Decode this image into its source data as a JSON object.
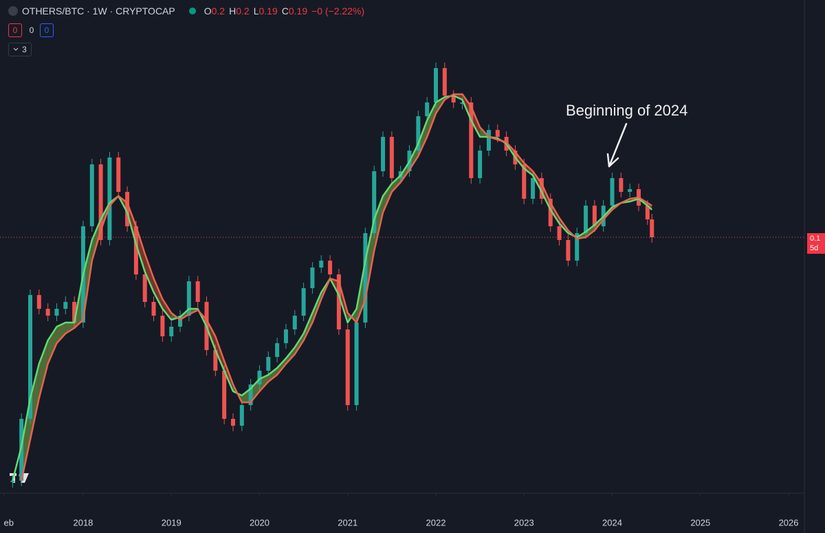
{
  "ui": {
    "symbol": "OTHERS/BTC · 1W · CRYPTOCAP",
    "ohlc": [
      {
        "label": "O",
        "value": "0.2"
      },
      {
        "label": "H",
        "value": "0.2"
      },
      {
        "label": "L",
        "value": "0.19"
      },
      {
        "label": "C",
        "value": "0.19"
      }
    ],
    "change": "−0 (−2.22%)",
    "badges": [
      "0",
      "0",
      "0"
    ],
    "collapsed": "3",
    "price_tag": [
      "0.1",
      "5d"
    ]
  },
  "chart_data": {
    "type": "candlestick",
    "annotation": "Beginning of 2024",
    "x": [
      2017.2,
      2017.3,
      2017.4,
      2017.5,
      2017.6,
      2017.7,
      2017.8,
      2017.9,
      2018.0,
      2018.1,
      2018.2,
      2018.3,
      2018.4,
      2018.5,
      2018.6,
      2018.7,
      2018.8,
      2018.9,
      2019.0,
      2019.1,
      2019.2,
      2019.3,
      2019.4,
      2019.5,
      2019.6,
      2019.7,
      2019.8,
      2019.9,
      2020.0,
      2020.1,
      2020.2,
      2020.3,
      2020.4,
      2020.5,
      2020.6,
      2020.7,
      2020.8,
      2020.9,
      2021.0,
      2021.1,
      2021.2,
      2021.3,
      2021.4,
      2021.5,
      2021.6,
      2021.7,
      2021.8,
      2021.9,
      2022.0,
      2022.1,
      2022.2,
      2022.3,
      2022.4,
      2022.5,
      2022.6,
      2022.7,
      2022.8,
      2022.9,
      2023.0,
      2023.1,
      2023.2,
      2023.3,
      2023.4,
      2023.5,
      2023.6,
      2023.7,
      2023.8,
      2023.9,
      2024.0,
      2024.1,
      2024.2,
      2024.3,
      2024.4,
      2024.45
    ],
    "series": [
      {
        "style": "candles",
        "up_color": "#26a69a",
        "down_color": "#ef5350",
        "values": [
          0.009,
          0.054,
          0.144,
          0.134,
          0.129,
          0.134,
          0.139,
          0.124,
          0.194,
          0.239,
          0.184,
          0.244,
          0.219,
          0.194,
          0.159,
          0.139,
          0.129,
          0.114,
          0.121,
          0.129,
          0.154,
          0.139,
          0.104,
          0.089,
          0.054,
          0.049,
          0.064,
          0.079,
          0.089,
          0.099,
          0.109,
          0.119,
          0.129,
          0.149,
          0.164,
          0.169,
          0.159,
          0.119,
          0.064,
          0.124,
          0.189,
          0.234,
          0.259,
          0.229,
          0.234,
          0.249,
          0.274,
          0.284,
          0.309,
          0.289,
          0.284,
          0.284,
          0.229,
          0.249,
          0.264,
          0.259,
          0.249,
          0.239,
          0.214,
          0.229,
          0.214,
          0.194,
          0.184,
          0.169,
          0.189,
          0.209,
          0.194,
          0.209,
          0.229,
          0.219,
          0.221,
          0.209,
          0.199,
          0.186
        ]
      },
      {
        "style": "line",
        "color": "#5fdc74",
        "values": [
          0.009,
          0.034,
          0.069,
          0.094,
          0.111,
          0.121,
          0.124,
          0.124,
          0.159,
          0.184,
          0.199,
          0.211,
          0.216,
          0.204,
          0.181,
          0.161,
          0.146,
          0.134,
          0.126,
          0.128,
          0.134,
          0.134,
          0.121,
          0.104,
          0.089,
          0.074,
          0.071,
          0.076,
          0.083,
          0.086,
          0.091,
          0.098,
          0.106,
          0.116,
          0.131,
          0.146,
          0.156,
          0.144,
          0.124,
          0.134,
          0.169,
          0.199,
          0.216,
          0.225,
          0.231,
          0.241,
          0.254,
          0.271,
          0.284,
          0.288,
          0.289,
          0.286,
          0.271,
          0.259,
          0.259,
          0.258,
          0.254,
          0.244,
          0.236,
          0.231,
          0.219,
          0.206,
          0.196,
          0.189,
          0.186,
          0.19,
          0.195,
          0.201,
          0.208,
          0.211,
          0.212,
          0.214,
          0.209,
          0.206
        ]
      },
      {
        "style": "line",
        "color": "#e8644f",
        "values": [
          null,
          0.009,
          0.039,
          0.069,
          0.094,
          0.109,
          0.116,
          0.12,
          0.126,
          0.169,
          0.191,
          0.209,
          0.216,
          0.211,
          0.194,
          0.174,
          0.156,
          0.141,
          0.131,
          0.126,
          0.13,
          0.133,
          0.126,
          0.114,
          0.096,
          0.079,
          0.066,
          0.066,
          0.074,
          0.081,
          0.086,
          0.094,
          0.101,
          0.111,
          0.124,
          0.141,
          0.156,
          0.154,
          0.131,
          0.124,
          0.141,
          0.176,
          0.204,
          0.219,
          0.226,
          0.235,
          0.245,
          0.259,
          0.276,
          0.286,
          0.29,
          0.29,
          0.281,
          0.266,
          0.259,
          0.257,
          0.255,
          0.248,
          0.24,
          0.234,
          0.225,
          0.211,
          0.2,
          0.191,
          0.185,
          0.186,
          0.191,
          0.199,
          0.206,
          0.211,
          0.214,
          0.215,
          0.211,
          0.209
        ]
      }
    ],
    "ribbon_up_color": "#5a7a3a",
    "ribbon_down_color": "#8a3a2a",
    "xlim": [
      2017.057,
      2026.179
    ],
    "xticks": [
      {
        "value": 2017.1,
        "label": "eb"
      },
      2018,
      2019,
      2020,
      2021,
      2022,
      2023,
      2024,
      2025,
      2026
    ],
    "ylim": [
      0,
      0.3585
    ]
  }
}
